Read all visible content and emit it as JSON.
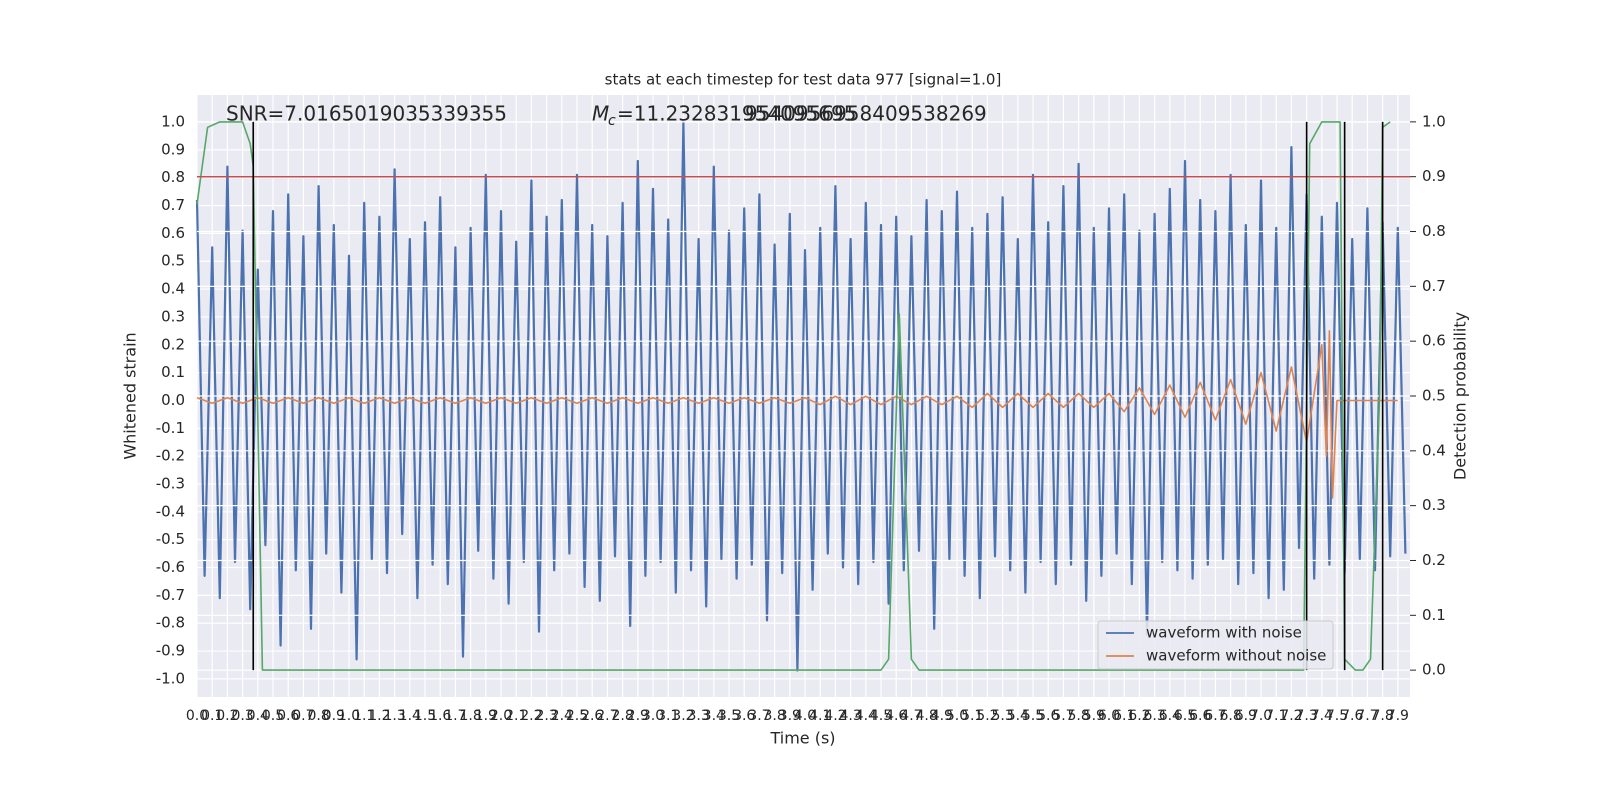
{
  "chart_data": {
    "type": "line",
    "title": "stats at each timestep for test data 977 [signal=1.0]",
    "xlabel": "Time (s)",
    "ylabel": "Whitened strain",
    "y2label": "Detection probability",
    "annotations": [
      {
        "text": "SNR=7.0165019035339355"
      },
      {
        "symbol": "M",
        "subscript": "c",
        "text": "=11.232831954095695"
      },
      {
        "text": "9540956958409538269"
      }
    ],
    "xlim": [
      0,
      7.98
    ],
    "ylim": [
      -1.065,
      1.097
    ],
    "y2lim": [
      -0.049,
      1.049
    ],
    "xticks": [
      {
        "value": 0,
        "label": "0.0"
      },
      0.1,
      0.2,
      0.3,
      0.4,
      0.5,
      0.6,
      0.7,
      0.8,
      0.9,
      {
        "value": 1,
        "label": "1.0"
      },
      1.1,
      1.2,
      1.3,
      1.4,
      1.5,
      1.6,
      1.7,
      1.8,
      1.9,
      {
        "value": 2,
        "label": "2.0"
      },
      2.1,
      2.2,
      2.3,
      2.4,
      2.5,
      2.6,
      2.7,
      2.8,
      2.9,
      {
        "value": 3,
        "label": "3.0"
      },
      3.1,
      3.2,
      3.3,
      3.4,
      3.5,
      3.6,
      3.7,
      3.8,
      3.9,
      {
        "value": 4,
        "label": "4.0"
      },
      4.1,
      4.2,
      4.3,
      4.4,
      4.5,
      4.6,
      4.7,
      4.8,
      4.9,
      {
        "value": 5,
        "label": "5.0"
      },
      5.1,
      5.2,
      5.3,
      5.4,
      5.5,
      5.6,
      5.7,
      5.8,
      5.9,
      {
        "value": 6,
        "label": "6.0"
      },
      6.1,
      6.2,
      6.3,
      6.4,
      6.5,
      6.6,
      6.7,
      6.8,
      6.9,
      {
        "value": 7,
        "label": "7.0"
      },
      7.1,
      7.2,
      7.3,
      7.4,
      7.5,
      7.6,
      7.7,
      7.8,
      7.9
    ],
    "yticks": [
      {
        "value": -1,
        "label": "-1.0"
      },
      -0.9,
      -0.8,
      -0.7,
      -0.6,
      -0.5,
      -0.4,
      -0.3,
      -0.2,
      -0.1,
      {
        "value": 0,
        "label": "0.0"
      },
      0.1,
      0.2,
      0.3,
      0.4,
      0.5,
      0.6,
      0.7,
      0.8,
      0.9,
      {
        "value": 1,
        "label": "1.0"
      }
    ],
    "y2ticks": [
      {
        "value": 0,
        "label": "0.0"
      },
      0.1,
      0.2,
      0.3,
      0.4,
      0.5,
      0.6,
      0.7,
      0.8,
      0.9,
      {
        "value": 1,
        "label": "1.0"
      }
    ],
    "grid": true,
    "legend": "lower right",
    "threshold": {
      "value": 0.9,
      "axis": "y2",
      "color": "#c44e52"
    },
    "markers": [
      0.37,
      7.3,
      7.55,
      7.8
    ],
    "series": [
      {
        "name": "waveform with noise",
        "color": "#4c72b0",
        "x": [
          0,
          0.05,
          0.1,
          0.15,
          0.2,
          0.25,
          0.3,
          0.35,
          0.4,
          0.45,
          0.5,
          0.55,
          0.6,
          0.65,
          0.7,
          0.75,
          0.8,
          0.85,
          0.9,
          0.95,
          1,
          1.05,
          1.1,
          1.15,
          1.2,
          1.25,
          1.3,
          1.35,
          1.4,
          1.45,
          1.5,
          1.55,
          1.6,
          1.65,
          1.7,
          1.75,
          1.8,
          1.85,
          1.9,
          1.95,
          2,
          2.05,
          2.1,
          2.15,
          2.2,
          2.25,
          2.3,
          2.35,
          2.4,
          2.45,
          2.5,
          2.55,
          2.6,
          2.65,
          2.7,
          2.75,
          2.8,
          2.85,
          2.9,
          2.95,
          3,
          3.05,
          3.1,
          3.15,
          3.2,
          3.25,
          3.3,
          3.35,
          3.4,
          3.45,
          3.5,
          3.55,
          3.6,
          3.65,
          3.7,
          3.75,
          3.8,
          3.85,
          3.9,
          3.95,
          4,
          4.05,
          4.1,
          4.15,
          4.2,
          4.25,
          4.3,
          4.35,
          4.4,
          4.45,
          4.5,
          4.55,
          4.6,
          4.65,
          4.7,
          4.75,
          4.8,
          4.85,
          4.9,
          4.95,
          5,
          5.05,
          5.1,
          5.15,
          5.2,
          5.25,
          5.3,
          5.35,
          5.4,
          5.45,
          5.5,
          5.55,
          5.6,
          5.65,
          5.7,
          5.75,
          5.8,
          5.85,
          5.9,
          5.95,
          6,
          6.05,
          6.1,
          6.15,
          6.2,
          6.25,
          6.3,
          6.35,
          6.4,
          6.45,
          6.5,
          6.55,
          6.6,
          6.65,
          6.7,
          6.75,
          6.8,
          6.85,
          6.9,
          6.95,
          7,
          7.05,
          7.1,
          7.15,
          7.2,
          7.25,
          7.3,
          7.35,
          7.4,
          7.45,
          7.5,
          7.55,
          7.6,
          7.65,
          7.7,
          7.75,
          7.8,
          7.85,
          7.9,
          7.95
        ],
        "values": [
          0.72,
          -0.63,
          0.55,
          -0.71,
          0.84,
          -0.58,
          0.61,
          -0.75,
          0.47,
          -0.52,
          0.68,
          -0.88,
          0.74,
          -0.61,
          0.59,
          -0.82,
          0.77,
          -0.55,
          0.63,
          -0.69,
          0.52,
          -0.93,
          0.71,
          -0.57,
          0.66,
          -0.62,
          0.83,
          -0.48,
          0.58,
          -0.71,
          0.64,
          -0.59,
          0.73,
          -0.66,
          0.55,
          -0.92,
          0.62,
          -0.54,
          0.81,
          -0.64,
          0.68,
          -0.73,
          0.57,
          -0.58,
          0.79,
          -0.83,
          0.66,
          -0.61,
          0.72,
          -0.55,
          0.81,
          -0.67,
          0.63,
          -0.72,
          0.59,
          -0.56,
          0.71,
          -0.81,
          0.86,
          -0.63,
          0.76,
          -0.58,
          0.65,
          -0.69,
          1.0,
          -0.61,
          0.58,
          -0.74,
          0.84,
          -0.57,
          0.61,
          -0.64,
          0.69,
          -0.59,
          0.74,
          -0.79,
          0.56,
          -0.62,
          0.67,
          -0.97,
          0.54,
          -0.68,
          0.62,
          -0.55,
          0.77,
          -0.6,
          0.58,
          -0.66,
          0.71,
          -0.58,
          0.63,
          -0.73,
          0.66,
          -0.61,
          0.59,
          -0.54,
          0.72,
          -0.82,
          0.68,
          -0.57,
          0.75,
          -0.63,
          0.62,
          -0.71,
          0.67,
          -0.56,
          0.73,
          -0.61,
          0.58,
          -0.69,
          0.81,
          -0.58,
          0.64,
          -0.66,
          0.77,
          -0.59,
          0.85,
          -0.72,
          0.62,
          -0.63,
          0.69,
          -0.55,
          0.74,
          -0.66,
          0.61,
          -0.84,
          0.67,
          -0.58,
          0.76,
          -0.61,
          0.86,
          -0.64,
          0.72,
          -0.59,
          0.68,
          -0.57,
          0.81,
          -0.66,
          0.63,
          -0.62,
          0.79,
          -0.71,
          0.62,
          -0.68,
          0.91,
          -0.53,
          0.74,
          -0.64,
          0.66,
          -0.59,
          0.71,
          -0.62,
          0.58,
          -0.57,
          0.69,
          -0.61,
          0.64,
          -0.56,
          0.62,
          -0.55
        ]
      },
      {
        "name": "waveform without noise",
        "color": "#dd8452",
        "x": [
          0,
          0.1,
          0.2,
          0.3,
          0.4,
          0.5,
          0.6,
          0.7,
          0.8,
          0.9,
          1,
          1.1,
          1.2,
          1.3,
          1.4,
          1.5,
          1.6,
          1.7,
          1.8,
          1.9,
          2,
          2.1,
          2.2,
          2.3,
          2.4,
          2.5,
          2.6,
          2.7,
          2.8,
          2.9,
          3,
          3.1,
          3.2,
          3.3,
          3.4,
          3.5,
          3.6,
          3.7,
          3.8,
          3.9,
          4,
          4.1,
          4.2,
          4.3,
          4.4,
          4.5,
          4.6,
          4.7,
          4.8,
          4.9,
          5,
          5.1,
          5.2,
          5.3,
          5.4,
          5.5,
          5.6,
          5.7,
          5.8,
          5.9,
          6,
          6.1,
          6.2,
          6.3,
          6.4,
          6.5,
          6.6,
          6.7,
          6.8,
          6.9,
          7,
          7.1,
          7.2,
          7.3,
          7.4,
          7.43,
          7.45,
          7.47,
          7.5,
          7.6,
          7.7,
          7.8,
          7.9
        ],
        "values": [
          0.01,
          -0.01,
          0.01,
          -0.01,
          0.01,
          -0.01,
          0.01,
          -0.01,
          0.01,
          -0.01,
          0.01,
          -0.01,
          0.01,
          -0.01,
          0.01,
          -0.01,
          0.01,
          -0.01,
          0.01,
          -0.01,
          0.01,
          -0.01,
          0.01,
          -0.01,
          0.01,
          -0.01,
          0.01,
          -0.01,
          0.01,
          -0.01,
          0.01,
          -0.01,
          0.01,
          -0.01,
          0.01,
          -0.01,
          0.01,
          -0.01,
          0.01,
          -0.01,
          0.01,
          -0.015,
          0.015,
          -0.015,
          0.015,
          -0.015,
          0.015,
          -0.015,
          0.015,
          -0.015,
          0.015,
          -0.025,
          0.025,
          -0.025,
          0.025,
          -0.025,
          0.025,
          -0.025,
          0.025,
          -0.025,
          0.025,
          -0.04,
          0.045,
          -0.05,
          0.055,
          -0.06,
          0.065,
          -0.07,
          0.075,
          -0.085,
          0.1,
          -0.11,
          0.12,
          -0.15,
          0.2,
          -0.2,
          0.25,
          -0.35,
          0,
          0,
          0,
          0,
          0
        ]
      },
      {
        "color": "#55a868",
        "axis": "y2",
        "x": [
          0,
          0.07,
          0.15,
          0.3,
          0.35,
          0.37,
          0.43,
          1,
          4.5,
          4.55,
          4.62,
          4.7,
          4.75,
          5,
          7.28,
          7.32,
          7.4,
          7.52,
          7.55,
          7.62,
          7.67,
          7.72,
          7.78,
          7.8,
          7.85
        ],
        "values": [
          0.85,
          0.99,
          1,
          1,
          0.96,
          0.92,
          0,
          0,
          0,
          0.02,
          0.65,
          0.02,
          0,
          0,
          0,
          0.96,
          1,
          1,
          0.02,
          0,
          0,
          0.02,
          0.5,
          0.99,
          1
        ]
      }
    ]
  }
}
